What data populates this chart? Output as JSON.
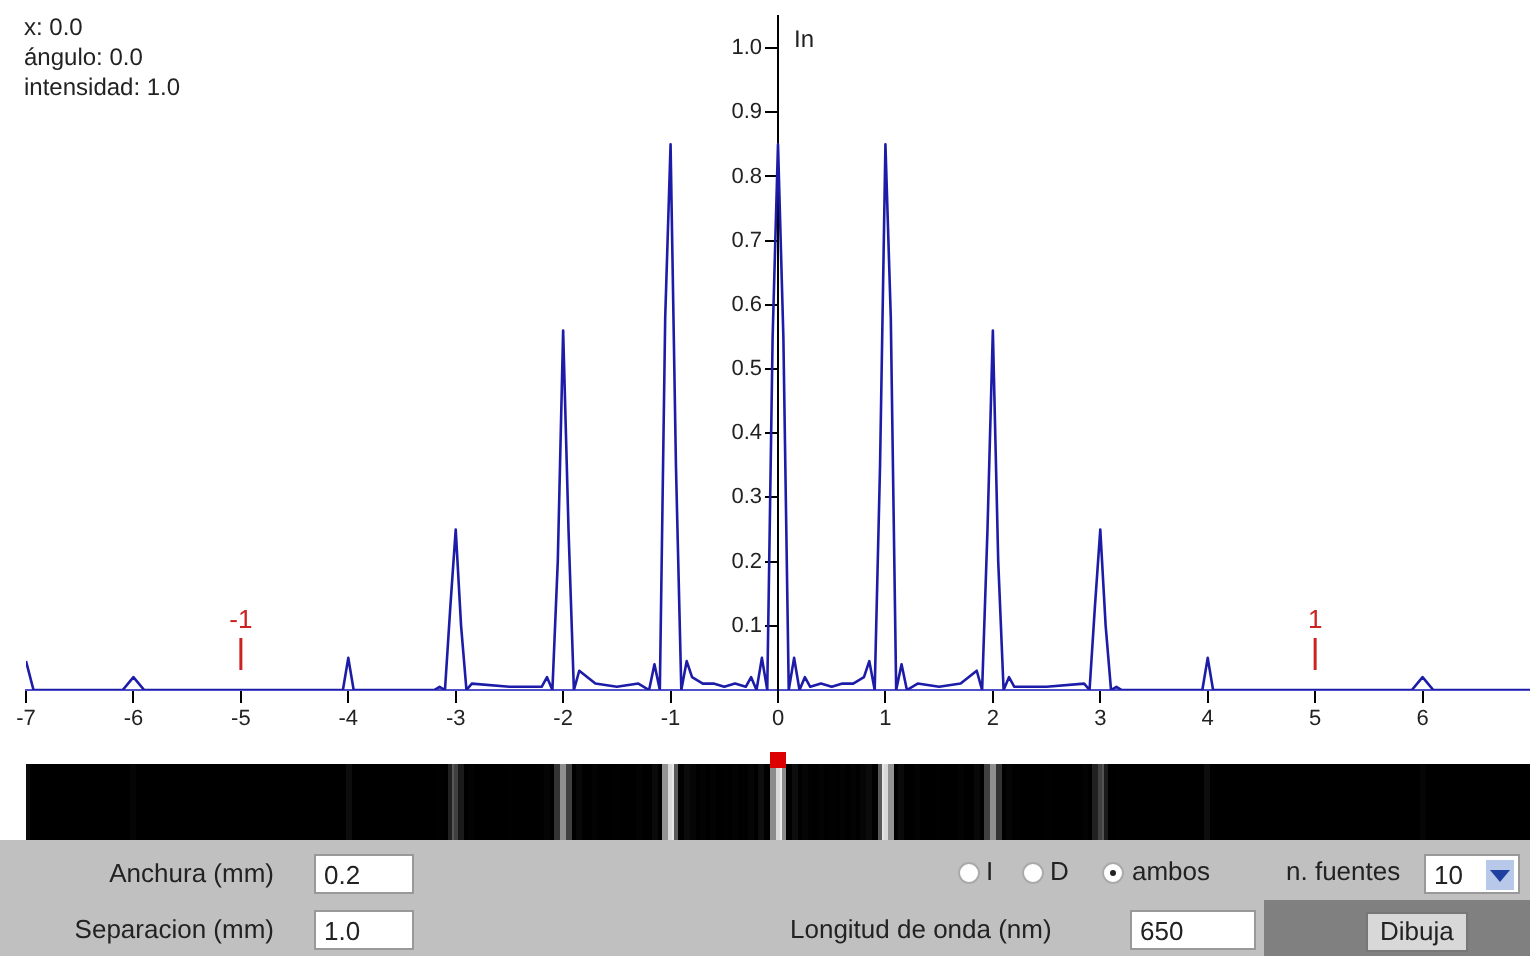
{
  "chart_data": {
    "type": "line",
    "ylabel": "In",
    "color": "#1c1ca8",
    "marker": "none",
    "grid": false,
    "legend": false,
    "annotations": [
      "x: 0.0",
      "ángulo: 0.0",
      "intensidad: 1.0",
      "Anchura (mm)",
      "0.2",
      "Separacion (mm)",
      "1.0",
      "I",
      "D",
      "ambos",
      "n. fuentes",
      "10",
      "Longitud de onda (nm)",
      "650",
      "Dibuja",
      {
        "text": "-1",
        "x": -5,
        "y": 0
      },
      {
        "text": "1",
        "x": 5,
        "y": 0
      }
    ],
    "xlim": [
      -7,
      7
    ],
    "xticks": [
      -7,
      -6,
      -5,
      -4,
      -3,
      -2,
      -1,
      0,
      1,
      2,
      3,
      4,
      5,
      6
    ],
    "ylim": [
      0,
      1.05
    ],
    "yticks": [
      {
        "value": 0.1,
        "label": "0.1"
      },
      {
        "value": 0.2,
        "label": "0.2"
      },
      {
        "value": 0.3,
        "label": "0.3"
      },
      {
        "value": 0.4,
        "label": "0.4"
      },
      {
        "value": 0.5,
        "label": "0.5"
      },
      {
        "value": 0.6,
        "label": "0.6"
      },
      {
        "value": 0.7,
        "label": "0.7"
      },
      {
        "value": 0.8,
        "label": "0.8"
      },
      {
        "value": 0.9,
        "label": "0.9"
      },
      {
        "value": 1,
        "label": "1.0"
      }
    ],
    "x": [
      -7,
      -6.93,
      -6.1,
      -6,
      -5.9,
      -4.05,
      -4,
      -3.95,
      -3.2,
      -3.15,
      -3.1,
      -3.05,
      -3,
      -2.95,
      -2.9,
      -2.85,
      -2.5,
      -2.2,
      -2.15,
      -2.1,
      -2.05,
      -2,
      -1.95,
      -1.9,
      -1.85,
      -1.7,
      -1.5,
      -1.3,
      -1.2,
      -1.15,
      -1.1,
      -1.05,
      -1,
      -0.95,
      -0.9,
      -0.85,
      -0.8,
      -0.7,
      -0.6,
      -0.5,
      -0.4,
      -0.3,
      -0.25,
      -0.2,
      -0.15,
      -0.1,
      -0.05,
      0,
      0.05,
      0.1,
      0.15,
      0.2,
      0.25,
      0.3,
      0.4,
      0.5,
      0.6,
      0.7,
      0.8,
      0.85,
      0.9,
      0.95,
      1,
      1.05,
      1.1,
      1.15,
      1.2,
      1.3,
      1.5,
      1.7,
      1.85,
      1.9,
      1.95,
      2,
      2.05,
      2.1,
      2.15,
      2.2,
      2.5,
      2.85,
      2.9,
      2.95,
      3,
      3.05,
      3.1,
      3.15,
      3.2,
      3.95,
      4,
      4.05,
      5.9,
      6,
      6.1,
      7
    ],
    "values": [
      0.045,
      0,
      0,
      0.02,
      0,
      0,
      0.05,
      0,
      0,
      0.005,
      0,
      0.13,
      0.25,
      0.1,
      0,
      0.01,
      0.005,
      0.005,
      0.02,
      0,
      0.2,
      0.56,
      0.25,
      0,
      0.03,
      0.01,
      0.005,
      0.01,
      0,
      0.04,
      0,
      0.58,
      0.85,
      0.35,
      0,
      0.045,
      0.02,
      0.01,
      0.01,
      0.005,
      0.01,
      0.005,
      0.02,
      0,
      0.05,
      0,
      0.55,
      0.85,
      0.55,
      0,
      0.05,
      0,
      0.02,
      0.005,
      0.01,
      0.005,
      0.01,
      0.01,
      0.02,
      0.045,
      0,
      0.35,
      0.85,
      0.58,
      0,
      0.04,
      0,
      0.01,
      0.005,
      0.01,
      0.03,
      0,
      0.25,
      0.56,
      0.2,
      0,
      0.02,
      0.005,
      0.005,
      0.01,
      0,
      0.13,
      0.25,
      0.1,
      0,
      0.005,
      0,
      0,
      0.05,
      0,
      0,
      0.02,
      0,
      0
    ]
  }
}
